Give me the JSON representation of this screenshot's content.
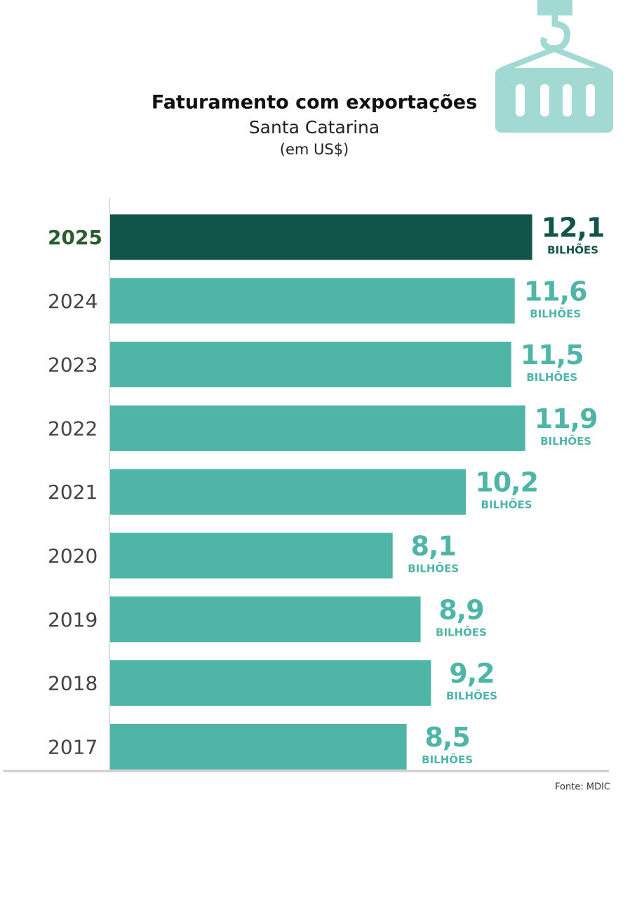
{
  "chart_data": {
    "type": "bar",
    "orientation": "horizontal",
    "title": "Faturamento com exportações",
    "subtitle": "Santa Catarina",
    "unit_note": "(em US$)",
    "categories": [
      "2025",
      "2024",
      "2023",
      "2022",
      "2021",
      "2020",
      "2019",
      "2018",
      "2017"
    ],
    "values": [
      12.1,
      11.6,
      11.5,
      11.9,
      10.2,
      8.1,
      8.9,
      9.2,
      8.5
    ],
    "value_labels": [
      "12,1",
      "11,6",
      "11,5",
      "11,9",
      "10,2",
      "8,1",
      "8,9",
      "9,2",
      "8,5"
    ],
    "value_unit": "BILHÕES",
    "colors": [
      "#11544a",
      "#4fb5a6",
      "#4fb5a6",
      "#4fb5a6",
      "#4fb5a6",
      "#4fb5a6",
      "#4fb5a6",
      "#4fb5a6",
      "#4fb5a6"
    ],
    "highlight_label_color": "#2a5e2e",
    "xlim": [
      0,
      14.3
    ],
    "source": "Fonte: MDIC"
  }
}
